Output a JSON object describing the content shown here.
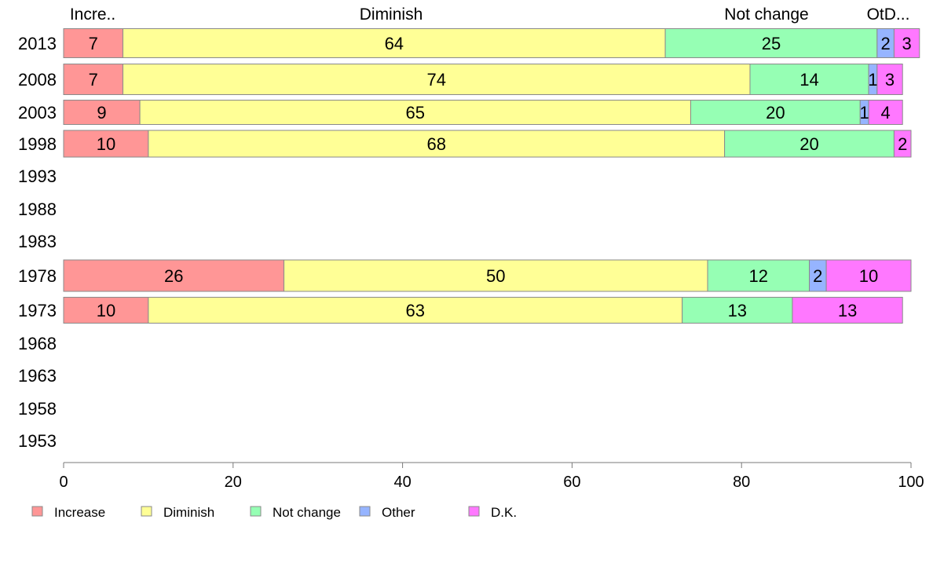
{
  "chart_data": {
    "type": "bar",
    "orientation": "horizontal",
    "stacked": true,
    "x_range": [
      0,
      100
    ],
    "x_ticks": [
      0,
      20,
      40,
      60,
      80,
      100
    ],
    "x_tick_labels": [
      "0",
      "20",
      "40",
      "60",
      "80",
      "100"
    ],
    "categories": [
      "2013",
      "2008",
      "2003",
      "1998",
      "1993",
      "1988",
      "1983",
      "1978",
      "1973",
      "1968",
      "1963",
      "1958",
      "1953"
    ],
    "top_labels": [
      "Incre..",
      "Diminish",
      "Not change",
      "OtD..."
    ],
    "series": [
      {
        "name": "Increase",
        "color": "#ff9696",
        "values": [
          7,
          7,
          9,
          10,
          null,
          null,
          null,
          26,
          10,
          null,
          null,
          null,
          null
        ]
      },
      {
        "name": "Diminish",
        "color": "#ffff96",
        "values": [
          64,
          74,
          65,
          68,
          null,
          null,
          null,
          50,
          63,
          null,
          null,
          null,
          null
        ]
      },
      {
        "name": "Not change",
        "color": "#96ffb4",
        "values": [
          25,
          14,
          20,
          20,
          null,
          null,
          null,
          12,
          13,
          null,
          null,
          null,
          null
        ]
      },
      {
        "name": "Other",
        "color": "#96b4ff",
        "values": [
          2,
          1,
          1,
          0,
          null,
          null,
          null,
          2,
          0,
          null,
          null,
          null,
          null
        ]
      },
      {
        "name": "D.K.",
        "color": "#ff78ff",
        "values": [
          3,
          3,
          4,
          2,
          null,
          null,
          null,
          10,
          13,
          null,
          null,
          null,
          null
        ]
      }
    ],
    "grid": false,
    "legend_position": "bottom-left"
  }
}
